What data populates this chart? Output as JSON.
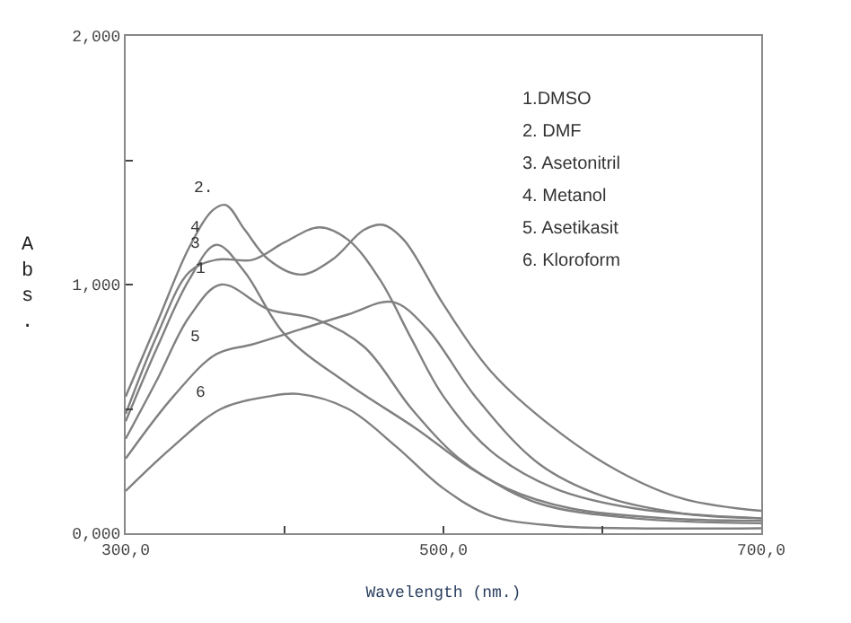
{
  "chart_data": {
    "type": "line",
    "xlabel": "Wavelength (nm.)",
    "ylabel": "Abs.",
    "xlim": [
      300,
      700
    ],
    "ylim": [
      0,
      2
    ],
    "xticks": [
      {
        "value": 300,
        "label": "300,0"
      },
      {
        "value": 400,
        "label": null
      },
      {
        "value": 500,
        "label": "500,0"
      },
      {
        "value": 600,
        "label": null
      },
      {
        "value": 700,
        "label": "700,0"
      }
    ],
    "yticks": [
      {
        "value": 0,
        "label": "0,000"
      },
      {
        "value": 0.5,
        "label": null
      },
      {
        "value": 1,
        "label": "1,000"
      },
      {
        "value": 1.5,
        "label": null
      },
      {
        "value": 2,
        "label": "2,000"
      }
    ],
    "marker": "none",
    "line_style": "solid",
    "series": [
      {
        "color": "#808080",
        "x": [
          300,
          320,
          340,
          357,
          375,
          400,
          440,
          483,
          520,
          560,
          620,
          700
        ],
        "values": [
          0.45,
          0.75,
          1.02,
          1.16,
          1.05,
          0.8,
          0.6,
          0.42,
          0.25,
          0.12,
          0.06,
          0.04
        ]
      },
      {
        "color": "#808080",
        "x": [
          300,
          320,
          340,
          355,
          363,
          375,
          390,
          410,
          430,
          450,
          462,
          475,
          500,
          530,
          570,
          610,
          650,
          700
        ],
        "values": [
          0.55,
          0.85,
          1.15,
          1.3,
          1.32,
          1.22,
          1.1,
          1.04,
          1.1,
          1.22,
          1.24,
          1.18,
          0.92,
          0.65,
          0.42,
          0.25,
          0.14,
          0.09
        ]
      },
      {
        "color": "#808080",
        "x": [
          300,
          320,
          340,
          357,
          380,
          400,
          422,
          440,
          460,
          480,
          500,
          530,
          570,
          620,
          700
        ],
        "values": [
          0.48,
          0.8,
          1.05,
          1.1,
          1.1,
          1.17,
          1.23,
          1.18,
          1.02,
          0.78,
          0.55,
          0.33,
          0.18,
          0.1,
          0.06
        ]
      },
      {
        "color": "#808080",
        "x": [
          300,
          320,
          340,
          360,
          390,
          420,
          450,
          480,
          510,
          540,
          580,
          640,
          700
        ],
        "values": [
          0.38,
          0.62,
          0.87,
          1.0,
          0.9,
          0.86,
          0.75,
          0.5,
          0.3,
          0.18,
          0.1,
          0.06,
          0.05
        ]
      },
      {
        "color": "#808080",
        "x": [
          300,
          330,
          357,
          380,
          410,
          440,
          468,
          490,
          520,
          560,
          600,
          650,
          700
        ],
        "values": [
          0.3,
          0.55,
          0.72,
          0.76,
          0.82,
          0.88,
          0.93,
          0.82,
          0.55,
          0.28,
          0.15,
          0.08,
          0.06
        ]
      },
      {
        "color": "#808080",
        "x": [
          300,
          330,
          360,
          390,
          409,
          440,
          470,
          500,
          530,
          570,
          620,
          700
        ],
        "values": [
          0.17,
          0.35,
          0.5,
          0.55,
          0.56,
          0.5,
          0.35,
          0.18,
          0.07,
          0.03,
          0.02,
          0.02
        ]
      }
    ],
    "annotations": [
      "1.DMSO",
      "2. DMF",
      "3. Asetonitril",
      "4. Metanol",
      "5. Asetikasit",
      "6. Kloroform",
      {
        "text": "2.",
        "x": 363,
        "y": 1.32
      },
      {
        "text": "4",
        "x": 357,
        "y": 1.16
      },
      {
        "text": "3",
        "x": 357,
        "y": 1.1
      },
      {
        "text": "1",
        "x": 360,
        "y": 1.0
      },
      {
        "text": "5",
        "x": 357,
        "y": 0.72
      },
      {
        "text": "6",
        "x": 360,
        "y": 0.5
      }
    ]
  }
}
